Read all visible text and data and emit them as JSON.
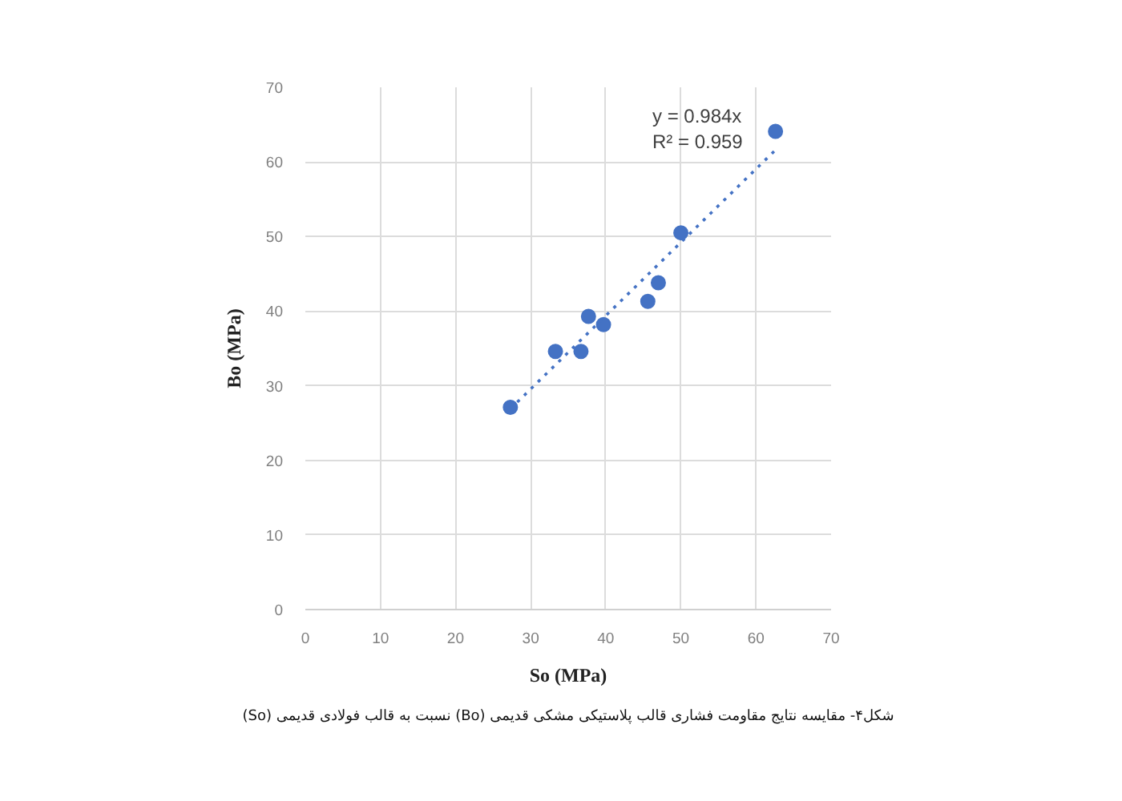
{
  "chart_data": {
    "type": "scatter",
    "title": "شکل۴- مقایسه نتایج مقاومت فشاری قالب پلاستیکی مشکی قدیمی (Bo) نسبت به قالب فولادی قدیمی (So)",
    "xlabel": "So (MPa)",
    "ylabel": "Bo (MPa)",
    "annotations": [
      "y = 0.984x",
      "R² = 0.959"
    ],
    "xlim": [
      0,
      70
    ],
    "ylim": [
      0,
      70
    ],
    "xticks": [
      0,
      10,
      20,
      30,
      40,
      50,
      60,
      70
    ],
    "yticks": [
      0,
      10,
      20,
      30,
      40,
      50,
      60,
      70
    ],
    "grid": true,
    "series": [
      {
        "color": "#4472c4",
        "marker": "circle",
        "x": [
          27.3,
          33.3,
          36.7,
          37.7,
          39.7,
          45.6,
          47.0,
          50.0,
          62.6
        ],
        "values": [
          27.1,
          34.6,
          34.6,
          39.3,
          38.2,
          41.3,
          43.8,
          50.5,
          64.1
        ]
      },
      {
        "type": "line",
        "color": "#4472c4",
        "marker": "none",
        "line_style": "dotted",
        "x": [
          27.3,
          62.6
        ],
        "values": [
          26.9,
          61.6
        ]
      }
    ]
  }
}
